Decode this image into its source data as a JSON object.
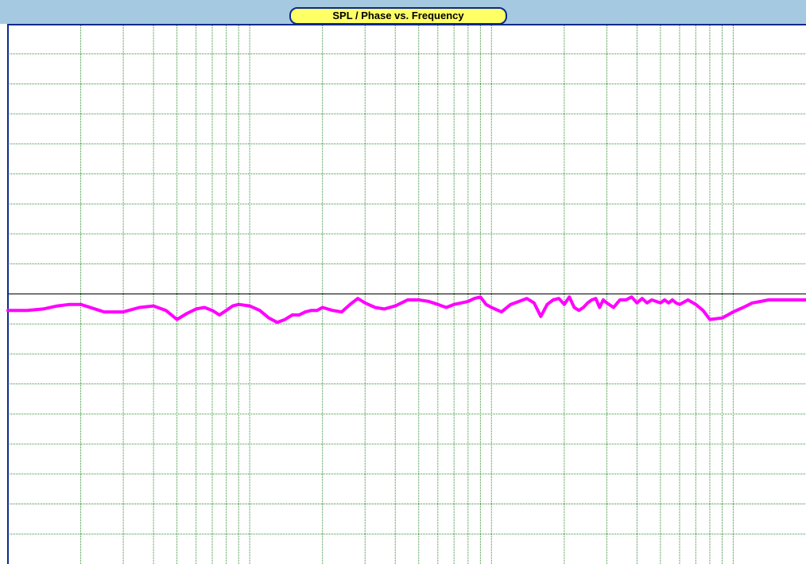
{
  "window": {
    "title": "SPL / Phase vs. Frequency"
  },
  "chart_data": {
    "type": "line",
    "title": "SPL / Phase vs. Frequency",
    "xlabel": "",
    "ylabel": "",
    "x_scale": "log",
    "xlim": [
      10,
      20000
    ],
    "ylim": [
      -9,
      9
    ],
    "grid": true,
    "reference_line_y": 0,
    "colors": {
      "grid": "#2e8b2e",
      "series": "#ff00ff",
      "axis": "#0a2a8c",
      "reference": "#000000"
    },
    "series": [
      {
        "x": [
          10,
          12,
          14,
          16,
          18,
          20,
          25,
          30,
          35,
          40,
          45,
          50,
          55,
          60,
          65,
          70,
          75,
          80,
          85,
          90,
          100,
          110,
          120,
          130,
          140,
          150,
          160,
          170,
          180,
          190,
          200,
          220,
          240,
          260,
          280,
          300,
          330,
          360,
          400,
          450,
          500,
          550,
          600,
          650,
          700,
          750,
          800,
          850,
          900,
          950,
          1000,
          1100,
          1200,
          1300,
          1400,
          1500,
          1600,
          1700,
          1800,
          1900,
          2000,
          2100,
          2200,
          2300,
          2400,
          2500,
          2600,
          2700,
          2800,
          2900,
          3000,
          3200,
          3400,
          3600,
          3800,
          4000,
          4200,
          4400,
          4600,
          4800,
          5000,
          5200,
          5400,
          5600,
          5800,
          6000,
          6500,
          7000,
          7500,
          8000,
          9000,
          10000,
          11000,
          12000,
          13000,
          14000,
          15000,
          17000,
          20000
        ],
        "y": [
          -0.55,
          -0.55,
          -0.5,
          -0.4,
          -0.35,
          -0.35,
          -0.6,
          -0.6,
          -0.45,
          -0.4,
          -0.55,
          -0.85,
          -0.65,
          -0.5,
          -0.45,
          -0.55,
          -0.7,
          -0.55,
          -0.4,
          -0.35,
          -0.4,
          -0.55,
          -0.8,
          -0.95,
          -0.85,
          -0.7,
          -0.7,
          -0.6,
          -0.55,
          -0.55,
          -0.45,
          -0.55,
          -0.6,
          -0.35,
          -0.15,
          -0.3,
          -0.45,
          -0.5,
          -0.4,
          -0.2,
          -0.2,
          -0.25,
          -0.35,
          -0.45,
          -0.35,
          -0.3,
          -0.25,
          -0.15,
          -0.1,
          -0.35,
          -0.45,
          -0.6,
          -0.35,
          -0.25,
          -0.15,
          -0.3,
          -0.75,
          -0.35,
          -0.2,
          -0.15,
          -0.35,
          -0.1,
          -0.45,
          -0.55,
          -0.45,
          -0.3,
          -0.2,
          -0.15,
          -0.45,
          -0.2,
          -0.3,
          -0.45,
          -0.2,
          -0.2,
          -0.1,
          -0.3,
          -0.15,
          -0.3,
          -0.2,
          -0.25,
          -0.3,
          -0.2,
          -0.3,
          -0.2,
          -0.3,
          -0.35,
          -0.2,
          -0.35,
          -0.55,
          -0.85,
          -0.8,
          -0.6,
          -0.45,
          -0.3,
          -0.25,
          -0.2,
          -0.2,
          -0.2,
          -0.2
        ]
      }
    ]
  }
}
